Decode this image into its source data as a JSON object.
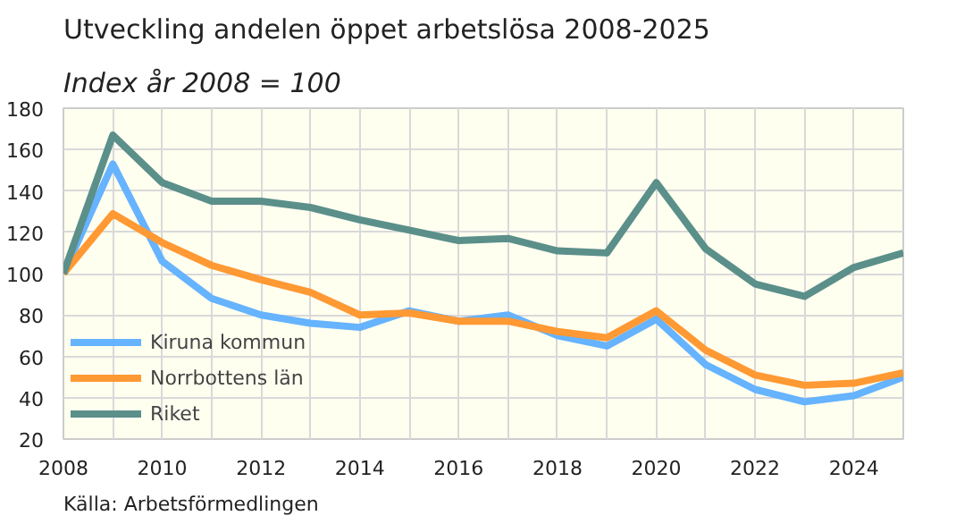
{
  "chart_data": {
    "type": "line",
    "title": "Utveckling andelen öppet arbetslösa 2008-2025",
    "subtitle": "Index år 2008 = 100",
    "annotations": [
      "Källa: Arbetsförmedlingen"
    ],
    "x": [
      2008,
      2009,
      2010,
      2011,
      2012,
      2013,
      2014,
      2015,
      2016,
      2017,
      2018,
      2019,
      2020,
      2021,
      2022,
      2023,
      2024,
      2025
    ],
    "series": [
      {
        "name": "Kiruna kommun",
        "color": "#66b3ff",
        "values": [
          100,
          153,
          106,
          88,
          80,
          76,
          74,
          82,
          77,
          80,
          70,
          65,
          78,
          56,
          44,
          38,
          41,
          50
        ]
      },
      {
        "name": "Norrbottens län",
        "color": "#ff9933",
        "values": [
          100,
          129,
          115,
          104,
          97,
          91,
          80,
          81,
          77,
          77,
          72,
          69,
          82,
          63,
          51,
          46,
          47,
          52
        ]
      },
      {
        "name": "Riket",
        "color": "#5b8f8a",
        "values": [
          100,
          167,
          144,
          135,
          135,
          132,
          126,
          121,
          116,
          117,
          111,
          110,
          144,
          112,
          95,
          89,
          103,
          110
        ]
      }
    ],
    "xlim": [
      2008,
      2025
    ],
    "xticks": [
      2008,
      2010,
      2012,
      2014,
      2016,
      2018,
      2020,
      2022,
      2024
    ],
    "ylim": [
      20,
      180
    ],
    "yticks": [
      20,
      40,
      60,
      80,
      100,
      120,
      140,
      160,
      180
    ],
    "grid": true,
    "legend": "bottom left",
    "line_style": "solid"
  }
}
